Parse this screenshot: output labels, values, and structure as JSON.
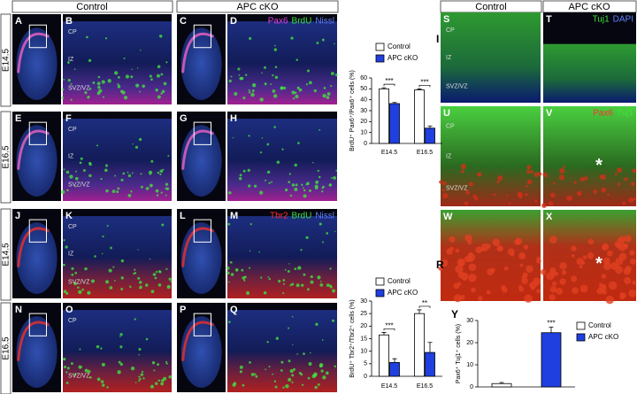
{
  "headers": {
    "left_control": "Control",
    "left_apc": "APC cKO",
    "right_control": "Control",
    "right_apc": "APC cKO"
  },
  "rows": [
    "E14.5",
    "E16.5",
    "E14.5",
    "E16.5"
  ],
  "panels": [
    {
      "letter": "A"
    },
    {
      "letter": "B",
      "labels": [
        "CP",
        "IZ",
        "SVZ/VZ"
      ]
    },
    {
      "letter": "C"
    },
    {
      "letter": "D",
      "stain": [
        {
          "text": "Pax6",
          "color": "#e040e0"
        },
        {
          "text": "BrdU",
          "color": "#40e040"
        },
        {
          "text": "Nissl",
          "color": "#6080ff"
        }
      ]
    },
    {
      "letter": "E"
    },
    {
      "letter": "F",
      "labels": [
        "CP",
        "IZ",
        "SVZ/VZ"
      ]
    },
    {
      "letter": "G"
    },
    {
      "letter": "H"
    },
    {
      "letter": "J"
    },
    {
      "letter": "K",
      "labels": [
        "CP",
        "IZ",
        "SVZ/VZ"
      ]
    },
    {
      "letter": "L"
    },
    {
      "letter": "M",
      "stain": [
        {
          "text": "Tbr2",
          "color": "#ff3030"
        },
        {
          "text": "BrdU",
          "color": "#40e040"
        },
        {
          "text": "Nissl",
          "color": "#6080ff"
        }
      ]
    },
    {
      "letter": "N"
    },
    {
      "letter": "O",
      "labels": [
        "CP",
        "SVZ/VZ"
      ]
    },
    {
      "letter": "P"
    },
    {
      "letter": "Q"
    },
    {
      "letter": "S",
      "labels": [
        "CP",
        "IZ",
        "SVZ/VZ"
      ]
    },
    {
      "letter": "T",
      "stain": [
        {
          "text": "Tuj1",
          "color": "#40e040"
        },
        {
          "text": "DAPI",
          "color": "#6080ff"
        }
      ]
    },
    {
      "letter": "U",
      "labels": [
        "CP",
        "IZ",
        "SVZ/VZ"
      ]
    },
    {
      "letter": "V",
      "stain": [
        {
          "text": "Pax6",
          "color": "#ff3030"
        },
        {
          "text": "Tuj1",
          "color": "#40e040"
        }
      ],
      "mark": "*"
    },
    {
      "letter": "W"
    },
    {
      "letter": "X",
      "mark": "*"
    }
  ],
  "chart_data": [
    {
      "type": "bar",
      "letter": "I",
      "ylabel": "BrdU⁺ Pax6⁺/Pax6⁺ cells (%)",
      "categories": [
        "E14.5",
        "E16.5"
      ],
      "series": [
        {
          "name": "Control",
          "color": "#ffffff",
          "values": [
            50,
            49
          ],
          "errors": [
            1,
            1
          ]
        },
        {
          "name": "APC cKO",
          "color": "#1f3fe0",
          "values": [
            36.5,
            14
          ],
          "errors": [
            1,
            2
          ]
        }
      ],
      "significance": [
        "***",
        "***"
      ],
      "ylim": [
        0,
        60
      ],
      "yticks": [
        0,
        10,
        20,
        30,
        40,
        50,
        60
      ]
    },
    {
      "type": "bar",
      "letter": "R",
      "ylabel": "BrdU⁺ Tbr2⁺/Tbr2⁺ cells (%)",
      "categories": [
        "E14.5",
        "E16.5"
      ],
      "series": [
        {
          "name": "Control",
          "color": "#ffffff",
          "values": [
            16.5,
            25
          ],
          "errors": [
            1,
            1.5
          ]
        },
        {
          "name": "APC cKO",
          "color": "#1f3fe0",
          "values": [
            5.5,
            9.5
          ],
          "errors": [
            1.5,
            4
          ]
        }
      ],
      "significance": [
        "***",
        "**"
      ],
      "ylim": [
        0,
        30
      ],
      "yticks": [
        0,
        5,
        10,
        15,
        20,
        25,
        30
      ]
    },
    {
      "type": "bar",
      "letter": "Y",
      "ylabel": "Pax6⁺ Tuj1⁺ cells (%)",
      "categories": [
        null
      ],
      "series": [
        {
          "name": "Control",
          "color": "#ffffff",
          "values": [
            1.5
          ],
          "errors": [
            0.5
          ]
        },
        {
          "name": "APC cKO",
          "color": "#1f3fe0",
          "values": [
            24.5
          ],
          "errors": [
            2.5
          ]
        }
      ],
      "significance": [
        "***"
      ],
      "ylim": [
        0,
        30
      ],
      "yticks": [
        0,
        10,
        20,
        30
      ]
    }
  ]
}
